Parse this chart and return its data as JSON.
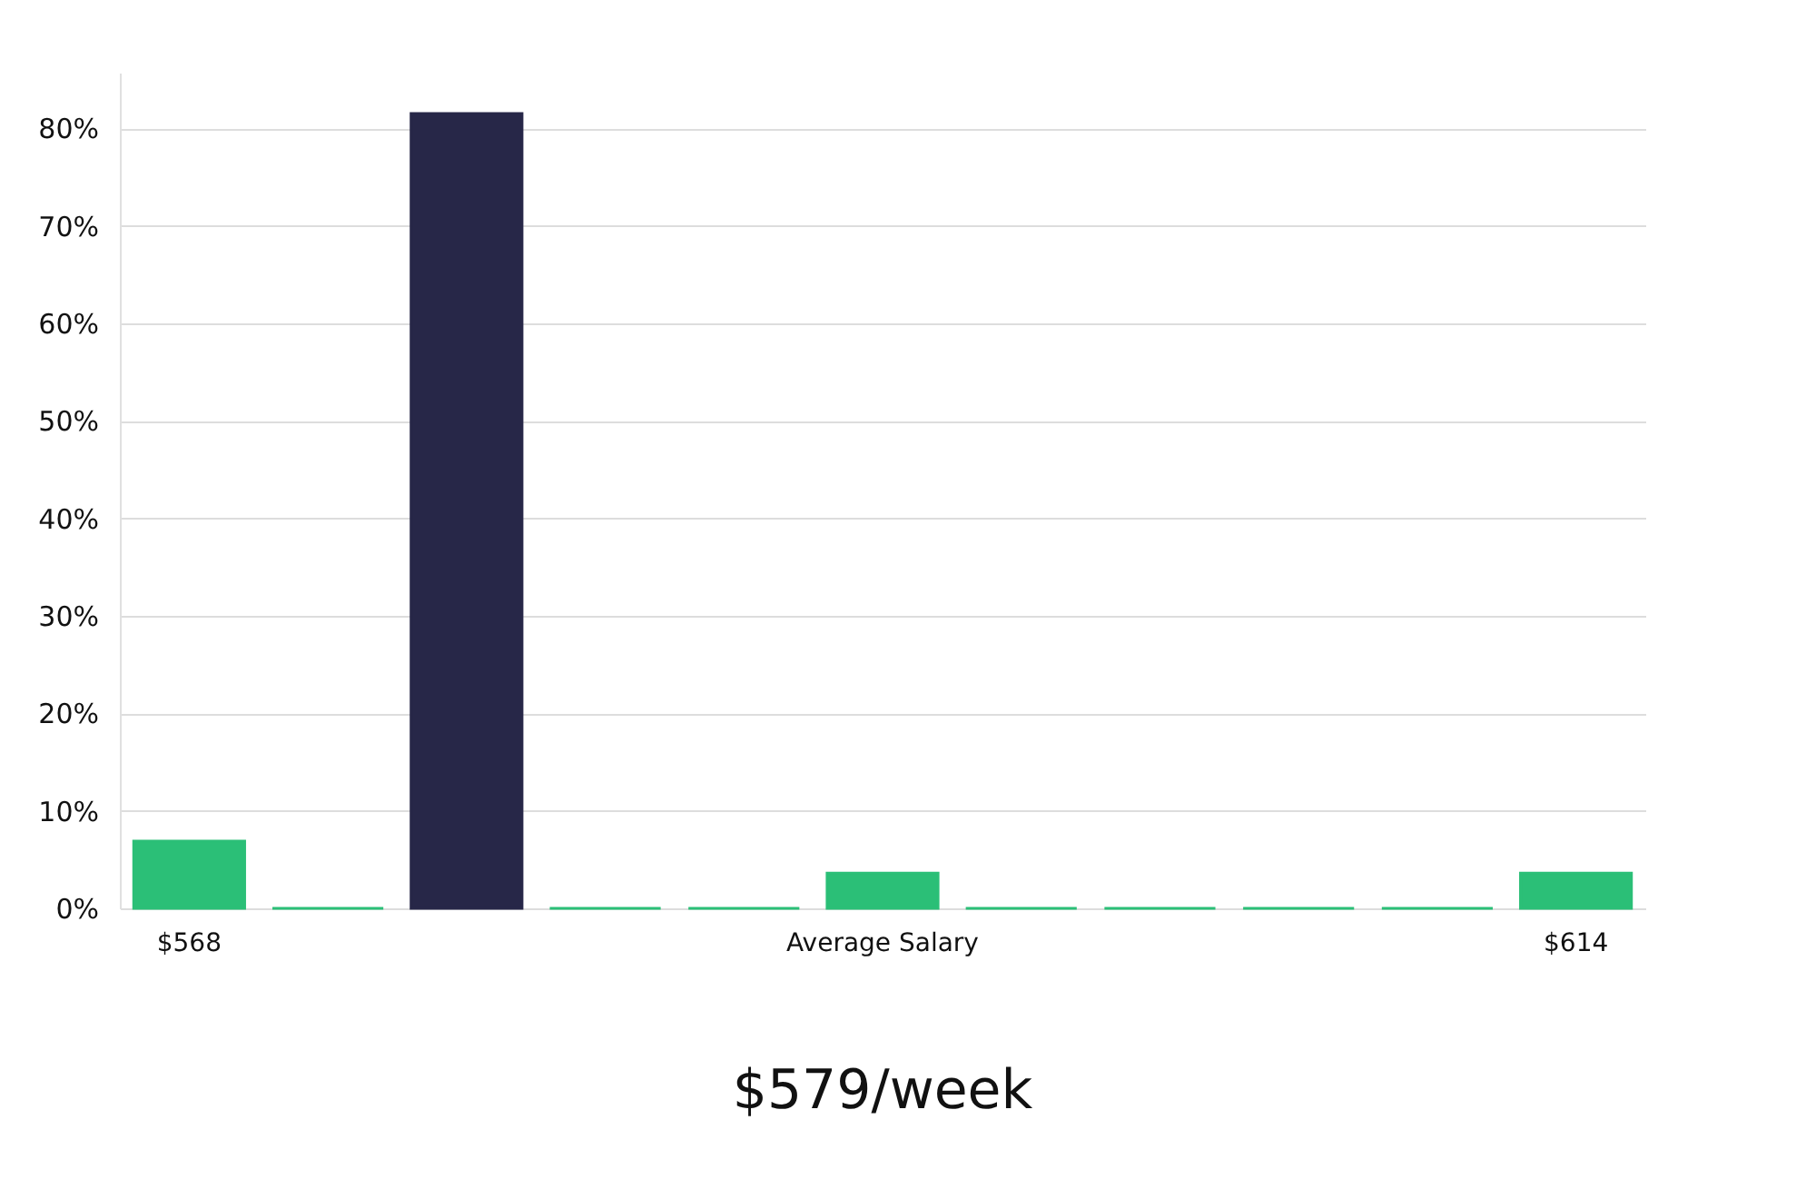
{
  "chart_data": {
    "type": "bar",
    "title": "$579/week",
    "categories": [
      "$568",
      null,
      null,
      null,
      null,
      "Average Salary",
      null,
      null,
      null,
      null,
      "$614"
    ],
    "values": [
      6.9,
      0,
      81.5,
      0,
      0,
      3.6,
      0,
      0,
      0,
      0,
      3.6
    ],
    "colors": [
      "#2bbf77",
      "#2bbf77",
      "#272748",
      "#2bbf77",
      "#2bbf77",
      "#2bbf77",
      "#2bbf77",
      "#2bbf77",
      "#2bbf77",
      "#2bbf77",
      "#2bbf77"
    ],
    "ylim": [
      0,
      85.7
    ],
    "yticks": [
      {
        "value": 0,
        "label": "0%"
      },
      {
        "value": 10,
        "label": "10%"
      },
      {
        "value": 20,
        "label": "20%"
      },
      {
        "value": 30,
        "label": "30%"
      },
      {
        "value": 40,
        "label": "40%"
      },
      {
        "value": 50,
        "label": "50%"
      },
      {
        "value": 60,
        "label": "60%"
      },
      {
        "value": 70,
        "label": "70%"
      },
      {
        "value": 80,
        "label": "80%"
      }
    ],
    "grid": "y"
  }
}
